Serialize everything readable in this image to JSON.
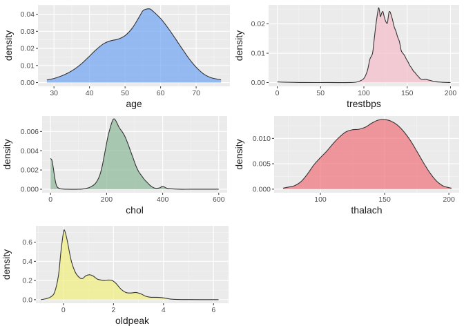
{
  "chart_data": [
    {
      "type": "area",
      "xlabel": "age",
      "ylabel": "density",
      "fill": "#6fa3f2",
      "xlim": [
        25.5,
        79.5
      ],
      "ylim": [
        -0.0022,
        0.0455
      ],
      "xticks": [
        30,
        40,
        50,
        60,
        70
      ],
      "xtick_labels": [
        "30",
        "40",
        "50",
        "60",
        "70"
      ],
      "yticks": [
        0.0,
        0.01,
        0.02,
        0.03,
        0.04
      ],
      "ytick_labels": [
        "0.00",
        "0.01",
        "0.02",
        "0.03",
        "0.04"
      ],
      "grid": true,
      "points": [
        [
          28,
          0.0015
        ],
        [
          30,
          0.0024
        ],
        [
          32,
          0.0038
        ],
        [
          34,
          0.0057
        ],
        [
          36,
          0.0082
        ],
        [
          38,
          0.0115
        ],
        [
          40,
          0.0155
        ],
        [
          42,
          0.0195
        ],
        [
          44,
          0.0228
        ],
        [
          46,
          0.0245
        ],
        [
          48,
          0.0254
        ],
        [
          50,
          0.0275
        ],
        [
          52,
          0.0318
        ],
        [
          54,
          0.0385
        ],
        [
          55,
          0.042
        ],
        [
          56,
          0.043
        ],
        [
          57,
          0.0431
        ],
        [
          58,
          0.0415
        ],
        [
          60,
          0.0375
        ],
        [
          62,
          0.0322
        ],
        [
          64,
          0.0262
        ],
        [
          66,
          0.02
        ],
        [
          68,
          0.014
        ],
        [
          70,
          0.009
        ],
        [
          72,
          0.0052
        ],
        [
          74,
          0.003
        ],
        [
          76,
          0.002
        ],
        [
          77,
          0.0016
        ]
      ]
    },
    {
      "type": "area",
      "xlabel": "trestbps",
      "ylabel": "density",
      "fill": "#f4bcc9",
      "xlim": [
        -10,
        210
      ],
      "ylim": [
        -0.0013,
        0.0265
      ],
      "xticks": [
        0,
        50,
        100,
        150,
        200
      ],
      "xtick_labels": [
        "0",
        "50",
        "100",
        "150",
        "200"
      ],
      "yticks": [
        0.0,
        0.01,
        0.02
      ],
      "ytick_labels": [
        "0.00",
        "0.01",
        "0.02"
      ],
      "grid": true,
      "points": [
        [
          0,
          0.0002
        ],
        [
          10,
          0.0001
        ],
        [
          30,
          0.0
        ],
        [
          60,
          0.0
        ],
        [
          85,
          0.0
        ],
        [
          92,
          0.0002
        ],
        [
          96,
          0.0006
        ],
        [
          100,
          0.0014
        ],
        [
          104,
          0.004
        ],
        [
          107,
          0.008
        ],
        [
          110,
          0.01
        ],
        [
          112,
          0.015
        ],
        [
          114,
          0.02
        ],
        [
          116,
          0.024
        ],
        [
          117,
          0.0255
        ],
        [
          118,
          0.0245
        ],
        [
          119,
          0.0225
        ],
        [
          120,
          0.0232
        ],
        [
          121,
          0.024
        ],
        [
          122,
          0.0242
        ],
        [
          123,
          0.023
        ],
        [
          125,
          0.021
        ],
        [
          127,
          0.0202
        ],
        [
          128,
          0.022
        ],
        [
          129,
          0.024
        ],
        [
          130,
          0.0242
        ],
        [
          131,
          0.0235
        ],
        [
          133,
          0.0215
        ],
        [
          135,
          0.019
        ],
        [
          137,
          0.0175
        ],
        [
          139,
          0.0155
        ],
        [
          141,
          0.014
        ],
        [
          143,
          0.011
        ],
        [
          145,
          0.01
        ],
        [
          147,
          0.0092
        ],
        [
          149,
          0.008
        ],
        [
          151,
          0.007
        ],
        [
          153,
          0.0058
        ],
        [
          155,
          0.005
        ],
        [
          157,
          0.004
        ],
        [
          159,
          0.0034
        ],
        [
          161,
          0.0026
        ],
        [
          163,
          0.002
        ],
        [
          165,
          0.0013
        ],
        [
          168,
          0.001
        ],
        [
          171,
          0.0011
        ],
        [
          174,
          0.0009
        ],
        [
          178,
          0.0006
        ],
        [
          182,
          0.0003
        ],
        [
          190,
          0.0001
        ],
        [
          200,
          0.0
        ]
      ]
    },
    {
      "type": "area",
      "xlabel": "chol",
      "ylabel": "density",
      "fill": "#8ab898",
      "xlim": [
        -30,
        630
      ],
      "ylim": [
        -0.00036,
        0.0076
      ],
      "xticks": [
        0,
        200,
        400,
        600
      ],
      "xtick_labels": [
        "0",
        "200",
        "400",
        "600"
      ],
      "yticks": [
        0.0,
        0.002,
        0.004,
        0.006
      ],
      "ytick_labels": [
        "0.000",
        "0.002",
        "0.004",
        "0.006"
      ],
      "grid": true,
      "points": [
        [
          0,
          0.0032
        ],
        [
          5,
          0.003
        ],
        [
          10,
          0.0022
        ],
        [
          15,
          0.0012
        ],
        [
          20,
          0.0005
        ],
        [
          25,
          0.0002
        ],
        [
          35,
          5e-05
        ],
        [
          60,
          0.0
        ],
        [
          100,
          0.0
        ],
        [
          120,
          5e-05
        ],
        [
          140,
          0.0002
        ],
        [
          160,
          0.0006
        ],
        [
          175,
          0.0014
        ],
        [
          185,
          0.0025
        ],
        [
          195,
          0.004
        ],
        [
          205,
          0.0055
        ],
        [
          215,
          0.0066
        ],
        [
          222,
          0.0072
        ],
        [
          228,
          0.0073
        ],
        [
          235,
          0.007
        ],
        [
          245,
          0.0064
        ],
        [
          255,
          0.006
        ],
        [
          265,
          0.0055
        ],
        [
          275,
          0.0048
        ],
        [
          285,
          0.004
        ],
        [
          295,
          0.0032
        ],
        [
          305,
          0.0024
        ],
        [
          315,
          0.0018
        ],
        [
          325,
          0.0014
        ],
        [
          335,
          0.001
        ],
        [
          345,
          0.0007
        ],
        [
          355,
          0.0004
        ],
        [
          365,
          0.0002
        ],
        [
          375,
          0.0001
        ],
        [
          390,
          0.00015
        ],
        [
          398,
          0.0003
        ],
        [
          405,
          0.00025
        ],
        [
          415,
          0.0001
        ],
        [
          430,
          5e-05
        ],
        [
          460,
          0.0
        ],
        [
          500,
          0.0
        ],
        [
          560,
          0.0
        ],
        [
          600,
          0.0
        ]
      ]
    },
    {
      "type": "area",
      "xlabel": "thalach",
      "ylabel": "density",
      "fill": "#f0707a",
      "xlim": [
        64,
        208
      ],
      "ylim": [
        -0.0007,
        0.0144
      ],
      "xticks": [
        100,
        150,
        200
      ],
      "xtick_labels": [
        "100",
        "150",
        "200"
      ],
      "yticks": [
        0.0,
        0.005,
        0.01
      ],
      "ytick_labels": [
        "0.000",
        "0.005",
        "0.010"
      ],
      "grid": true,
      "points": [
        [
          71,
          0.0002
        ],
        [
          75,
          0.0004
        ],
        [
          80,
          0.0007
        ],
        [
          85,
          0.0015
        ],
        [
          90,
          0.003
        ],
        [
          95,
          0.0048
        ],
        [
          100,
          0.0062
        ],
        [
          105,
          0.0075
        ],
        [
          110,
          0.009
        ],
        [
          115,
          0.0103
        ],
        [
          120,
          0.0113
        ],
        [
          125,
          0.0117
        ],
        [
          130,
          0.0118
        ],
        [
          135,
          0.0122
        ],
        [
          140,
          0.013
        ],
        [
          145,
          0.0136
        ],
        [
          150,
          0.0137
        ],
        [
          155,
          0.0134
        ],
        [
          160,
          0.0126
        ],
        [
          165,
          0.0113
        ],
        [
          170,
          0.0096
        ],
        [
          175,
          0.0075
        ],
        [
          180,
          0.0053
        ],
        [
          185,
          0.0033
        ],
        [
          190,
          0.0017
        ],
        [
          195,
          0.0007
        ],
        [
          200,
          0.0003
        ],
        [
          202,
          0.0002
        ]
      ]
    },
    {
      "type": "area",
      "xlabel": "oldpeak",
      "ylabel": "density",
      "fill": "#f0f07e",
      "xlim": [
        -1.1,
        6.6
      ],
      "ylim": [
        -0.037,
        0.77
      ],
      "xticks": [
        0,
        2,
        4,
        6
      ],
      "xtick_labels": [
        "0",
        "2",
        "4",
        "6"
      ],
      "yticks": [
        0.0,
        0.2,
        0.4,
        0.6
      ],
      "ytick_labels": [
        "0.0",
        "0.2",
        "0.4",
        "0.6"
      ],
      "grid": true,
      "points": [
        [
          -0.9,
          0.0
        ],
        [
          -0.7,
          0.01
        ],
        [
          -0.5,
          0.03
        ],
        [
          -0.35,
          0.08
        ],
        [
          -0.2,
          0.25
        ],
        [
          -0.1,
          0.5
        ],
        [
          0.0,
          0.7
        ],
        [
          0.05,
          0.72
        ],
        [
          0.15,
          0.62
        ],
        [
          0.3,
          0.42
        ],
        [
          0.45,
          0.3
        ],
        [
          0.6,
          0.24
        ],
        [
          0.75,
          0.22
        ],
        [
          0.9,
          0.25
        ],
        [
          1.05,
          0.26
        ],
        [
          1.2,
          0.245
        ],
        [
          1.35,
          0.215
        ],
        [
          1.5,
          0.205
        ],
        [
          1.65,
          0.2
        ],
        [
          1.8,
          0.205
        ],
        [
          1.95,
          0.2
        ],
        [
          2.1,
          0.17
        ],
        [
          2.3,
          0.11
        ],
        [
          2.5,
          0.075
        ],
        [
          2.7,
          0.07
        ],
        [
          2.9,
          0.075
        ],
        [
          3.1,
          0.06
        ],
        [
          3.3,
          0.035
        ],
        [
          3.5,
          0.025
        ],
        [
          3.7,
          0.025
        ],
        [
          3.9,
          0.022
        ],
        [
          4.1,
          0.015
        ],
        [
          4.3,
          0.006
        ],
        [
          4.6,
          0.002
        ],
        [
          5.0,
          0.001
        ],
        [
          5.5,
          0.0005
        ],
        [
          6.2,
          0.0
        ]
      ]
    }
  ]
}
